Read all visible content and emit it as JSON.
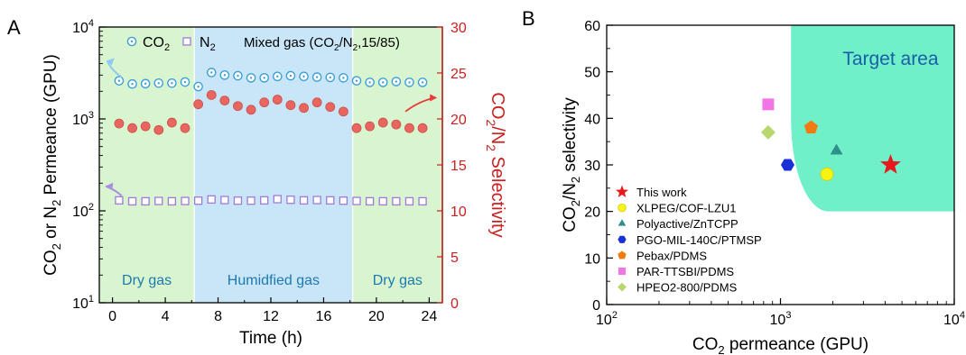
{
  "panels": {
    "a_label": "A",
    "b_label": "B"
  },
  "colors": {
    "co2": "#3d9fd9",
    "n2": "#a07ad8",
    "selectivity": "#e8665f",
    "sel_edge": "#c95049",
    "axis_right": "#cc1f1f",
    "bg_dry": "#d9f5cf",
    "bg_humid": "#c8e6f8",
    "region_text": "#1c7ab0",
    "target": "#6ff0c8",
    "target_text": "#1c5ea6"
  },
  "chart_data": [
    {
      "type": "scatter",
      "panel": "A",
      "xlabel": "Time (h)",
      "ylabel": "CO2 or N2 Permeance (GPU)",
      "ylabel_parts": [
        "CO",
        "2",
        " or N",
        "2",
        " Permeance (GPU)"
      ],
      "y2label": "CO2/N2 Selectivity",
      "y2label_parts": [
        "CO",
        "2",
        "/N",
        "2",
        " Selectivity"
      ],
      "xlim": [
        -1,
        25
      ],
      "x_ticks": [
        0,
        4,
        8,
        12,
        16,
        20,
        24
      ],
      "x_tick_labels": [
        "0",
        "4",
        "8",
        "12",
        "16",
        "20",
        "24"
      ],
      "yscale": "log",
      "ylim": [
        10,
        10000
      ],
      "y_tick_labels": [
        {
          "base": "10",
          "exp": "1",
          "value": 10
        },
        {
          "base": "10",
          "exp": "2",
          "value": 100
        },
        {
          "base": "10",
          "exp": "3",
          "value": 1000
        },
        {
          "base": "10",
          "exp": "4",
          "value": 10000
        }
      ],
      "y2lim": [
        0,
        30
      ],
      "y2_ticks": [
        0,
        5,
        10,
        15,
        20,
        25,
        30
      ],
      "y2_tick_labels": [
        "0",
        "5",
        "10",
        "15",
        "20",
        "25",
        "30"
      ],
      "legend": {
        "placement": "top",
        "co2": [
          "CO",
          "2"
        ],
        "n2": [
          "N",
          "2"
        ],
        "mixed": "Mixed gas (CO2/N2,15/85)",
        "mixed_parts": [
          "Mixed gas (CO",
          "2",
          "/N",
          "2",
          ",15/85)"
        ]
      },
      "regions": [
        {
          "label": "Dry gas",
          "from": -1,
          "to": 6.2,
          "type": "dry"
        },
        {
          "label": "Humidfied gas",
          "from": 6.2,
          "to": 18.2,
          "type": "humid"
        },
        {
          "label": "Dry gas",
          "from": 18.2,
          "to": 25,
          "type": "dry"
        }
      ],
      "series": [
        {
          "name": "CO2",
          "axis": "left",
          "marker": "circle-dot",
          "x": [
            0.5,
            1.5,
            2.5,
            3.5,
            4.5,
            5.5,
            6.5,
            7.5,
            8.5,
            9.5,
            10.5,
            11.5,
            12.5,
            13.5,
            14.5,
            15.5,
            16.5,
            17.5,
            18.5,
            19.5,
            20.5,
            21.5,
            22.5,
            23.5
          ],
          "y": [
            2600,
            2400,
            2420,
            2450,
            2450,
            2520,
            2250,
            3200,
            3000,
            2950,
            2800,
            2800,
            2900,
            2950,
            2900,
            2850,
            2830,
            2800,
            2600,
            2500,
            2500,
            2550,
            2500,
            2500
          ]
        },
        {
          "name": "N2",
          "axis": "left",
          "marker": "square",
          "x": [
            0.5,
            1.5,
            2.5,
            3.5,
            4.5,
            5.5,
            6.5,
            7.5,
            8.5,
            9.5,
            10.5,
            11.5,
            12.5,
            13.5,
            14.5,
            15.5,
            16.5,
            17.5,
            18.5,
            19.5,
            20.5,
            21.5,
            22.5,
            23.5
          ],
          "y": [
            130,
            127,
            127,
            128,
            127,
            128,
            129,
            133,
            131,
            129,
            129,
            130,
            134,
            132,
            130,
            131,
            130,
            129,
            128,
            127,
            127,
            127,
            127,
            127
          ]
        },
        {
          "name": "Selectivity",
          "axis": "right",
          "marker": "filled-circle",
          "x": [
            0.5,
            1.5,
            2.5,
            3.5,
            4.5,
            5.5,
            6.5,
            7.5,
            8.5,
            9.5,
            10.5,
            11.5,
            12.5,
            13.5,
            14.5,
            15.5,
            16.5,
            17.5,
            18.5,
            19.5,
            20.5,
            21.5,
            22.5,
            23.5
          ],
          "y": [
            19.5,
            19.0,
            19.2,
            18.8,
            19.6,
            19.0,
            21.6,
            22.6,
            22.0,
            21.4,
            21.0,
            21.8,
            22.1,
            21.5,
            21.2,
            21.8,
            21.3,
            20.8,
            19.0,
            19.2,
            19.6,
            19.4,
            19.0,
            19.0
          ]
        }
      ]
    },
    {
      "type": "scatter",
      "panel": "B",
      "xlabel": "CO2 permeance (GPU)",
      "xlabel_parts": [
        "CO",
        "2",
        " permeance (GPU)"
      ],
      "ylabel": "CO2/N2 selectivity",
      "ylabel_parts": [
        "CO",
        "2",
        "/N",
        "2",
        " selectivity"
      ],
      "xscale": "log",
      "xlim": [
        100,
        10000
      ],
      "x_tick_labels": [
        {
          "base": "10",
          "exp": "2",
          "value": 100
        },
        {
          "base": "10",
          "exp": "3",
          "value": 1000
        },
        {
          "base": "10",
          "exp": "4",
          "value": 10000
        }
      ],
      "ylim": [
        0,
        60
      ],
      "y_ticks": [
        0,
        10,
        20,
        30,
        40,
        50,
        60
      ],
      "y_tick_labels": [
        "0",
        "10",
        "20",
        "30",
        "40",
        "50",
        "60"
      ],
      "target_label": "Target area",
      "legend_placement": "bottom-left",
      "points": [
        {
          "name": "This work",
          "x": 4300,
          "y": 30,
          "marker": "star",
          "color": "#e8191e"
        },
        {
          "name": "XLPEG/COF-LZU1",
          "x": 1850,
          "y": 28,
          "marker": "circle",
          "color": "#f7f312"
        },
        {
          "name": "Polyactive/ZnTCPP",
          "x": 2100,
          "y": 33,
          "marker": "triangle",
          "color": "#2e9088"
        },
        {
          "name": "PGO-MIL-140C/PTMSP",
          "x": 1100,
          "y": 30,
          "marker": "hexagon",
          "color": "#1b2fd6"
        },
        {
          "name": "Pebax/PDMS",
          "x": 1500,
          "y": 38,
          "marker": "pentagon",
          "color": "#f07b12"
        },
        {
          "name": "PAR-TTSBI/PDMS",
          "x": 850,
          "y": 43,
          "marker": "square",
          "color": "#f275e6"
        },
        {
          "name": "HPEO2-800/PDMS",
          "x": 850,
          "y": 37,
          "marker": "diamond",
          "color": "#b9d76e"
        }
      ]
    }
  ]
}
